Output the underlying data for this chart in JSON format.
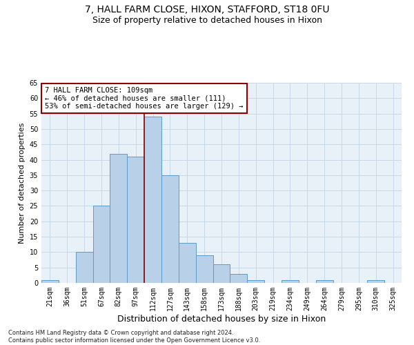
{
  "title1": "7, HALL FARM CLOSE, HIXON, STAFFORD, ST18 0FU",
  "title2": "Size of property relative to detached houses in Hixon",
  "xlabel": "Distribution of detached houses by size in Hixon",
  "ylabel": "Number of detached properties",
  "footnote": "Contains HM Land Registry data © Crown copyright and database right 2024.\nContains public sector information licensed under the Open Government Licence v3.0.",
  "bar_labels": [
    "21sqm",
    "36sqm",
    "51sqm",
    "67sqm",
    "82sqm",
    "97sqm",
    "112sqm",
    "127sqm",
    "143sqm",
    "158sqm",
    "173sqm",
    "188sqm",
    "203sqm",
    "219sqm",
    "234sqm",
    "249sqm",
    "264sqm",
    "279sqm",
    "295sqm",
    "310sqm",
    "325sqm"
  ],
  "bar_values": [
    1,
    0,
    10,
    25,
    42,
    41,
    54,
    35,
    13,
    9,
    6,
    3,
    1,
    0,
    1,
    0,
    1,
    0,
    0,
    1,
    0
  ],
  "bar_color": "#b8d0e8",
  "bar_edgecolor": "#5a9bc8",
  "vline_x": 5.5,
  "vline_color": "#8b0000",
  "annotation_box_text": "7 HALL FARM CLOSE: 109sqm\n← 46% of detached houses are smaller (111)\n53% of semi-detached houses are larger (129) →",
  "annotation_box_color": "#8b0000",
  "annotation_box_bg": "#ffffff",
  "ylim": [
    0,
    65
  ],
  "yticks": [
    0,
    5,
    10,
    15,
    20,
    25,
    30,
    35,
    40,
    45,
    50,
    55,
    60,
    65
  ],
  "grid_color": "#c8d8e8",
  "bg_color": "#e8f0f8",
  "title1_fontsize": 10,
  "title2_fontsize": 9,
  "xlabel_fontsize": 9,
  "ylabel_fontsize": 8,
  "tick_fontsize": 7,
  "annot_fontsize": 7.5,
  "footnote_fontsize": 6
}
